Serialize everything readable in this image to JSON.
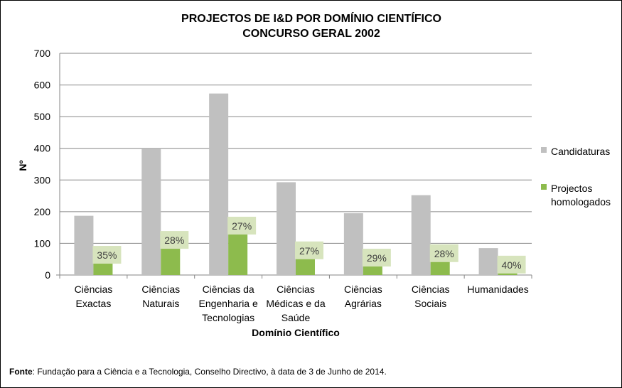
{
  "chart_data": {
    "type": "bar",
    "title": [
      "PROJECTOS DE I&D POR DOMÍNIO CIENTÍFICO",
      "CONCURSO GERAL 2002"
    ],
    "xlabel": "Domínio Científico",
    "ylabel": "Nº",
    "ylim": [
      0,
      700
    ],
    "yticks": [
      0,
      100,
      200,
      300,
      400,
      500,
      600,
      700
    ],
    "grid": true,
    "legend_position": "right",
    "categories": [
      [
        "Ciências",
        "Exactas"
      ],
      [
        "Ciências",
        "Naturais"
      ],
      [
        "Ciências da",
        "Engenharia e",
        "Tecnologias"
      ],
      [
        "Ciências",
        "Médicas e da",
        "Saúde"
      ],
      [
        "Ciências",
        "Agrárias"
      ],
      [
        "Ciências",
        "Sociais"
      ],
      [
        "Humanidades"
      ]
    ],
    "series": [
      {
        "name": "Candidaturas",
        "color": "#c0c0c0",
        "values": [
          187,
          400,
          573,
          293,
          195,
          252,
          85
        ]
      },
      {
        "name": [
          "Projectos",
          "homologados"
        ],
        "color": "#8dbb4d",
        "values": [
          65,
          112,
          157,
          79,
          56,
          70,
          34
        ]
      }
    ],
    "annotations": [
      "35%",
      "28%",
      "27%",
      "27%",
      "29%",
      "28%",
      "40%"
    ],
    "annotation_bg": "#d7e4bd"
  },
  "source": {
    "label": "Fonte",
    "text": ": Fundação para a Ciência e a Tecnologia, Conselho Directivo, à data de 3 de Junho de 2014."
  }
}
